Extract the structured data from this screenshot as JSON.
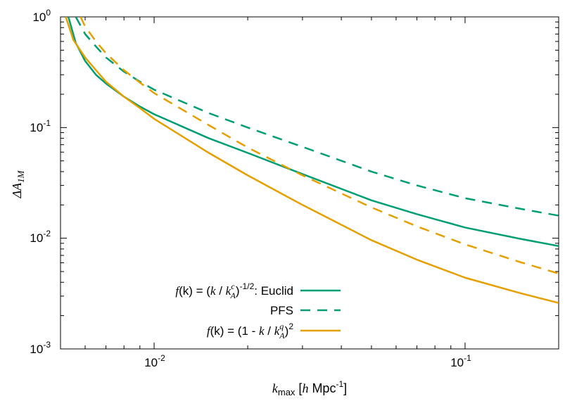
{
  "chart_data": {
    "type": "line",
    "xscale": "log",
    "yscale": "log",
    "xlim": [
      0.005,
      0.2
    ],
    "ylim": [
      0.001,
      1
    ],
    "grid": false,
    "legend_position": "bottom-left",
    "xlabel": {
      "main": "k",
      "sub": "max",
      "unit_open": " [",
      "unit_h": "h",
      "unit_mid": " Mpc",
      "unit_exp": "-1",
      "unit_close": "]"
    },
    "ylabel": {
      "delta": "Δ",
      "main": "A",
      "sub": "1M"
    },
    "xticks": [
      {
        "value": 0.01,
        "base": "10",
        "exp": "-2"
      },
      {
        "value": 0.1,
        "base": "10",
        "exp": "-1"
      }
    ],
    "yticks": [
      {
        "value": 1,
        "base": "10",
        "exp": "0"
      },
      {
        "value": 0.1,
        "base": "10",
        "exp": "-1"
      },
      {
        "value": 0.01,
        "base": "10",
        "exp": "-2"
      },
      {
        "value": 0.001,
        "base": "10",
        "exp": "-3"
      }
    ],
    "legend": [
      {
        "text_f": "f",
        "text_a": "(k) = (",
        "text_k": "k",
        "text_b": " / ",
        "text_kk": "k",
        "text_sup": "c",
        "text_sub": "A",
        "text_c": ")",
        "text_exp": "-1/2",
        "text_d": ": Euclid"
      },
      {
        "plain": "PFS"
      },
      {
        "text_f": "f",
        "text_a": "(k) = (1 - ",
        "text_k": "k",
        "text_b": " / ",
        "text_kk": "k",
        "text_sup": "q",
        "text_sub": "A",
        "text_c": ")",
        "text_exp": "2",
        "text_d": ""
      }
    ],
    "series": [
      {
        "key": "euclid_c",
        "color": "#009e73",
        "dash": "solid",
        "x": [
          0.0053,
          0.0056,
          0.006,
          0.0065,
          0.007,
          0.008,
          0.009,
          0.01,
          0.015,
          0.02,
          0.03,
          0.05,
          0.07,
          0.1,
          0.15,
          0.2
        ],
        "y": [
          1.0,
          0.58,
          0.4,
          0.3,
          0.25,
          0.19,
          0.155,
          0.132,
          0.08,
          0.059,
          0.038,
          0.022,
          0.0165,
          0.0125,
          0.0099,
          0.0085
        ]
      },
      {
        "key": "pfs_c",
        "color": "#009e73",
        "dash": "dashed",
        "x": [
          0.0056,
          0.006,
          0.0065,
          0.007,
          0.008,
          0.009,
          0.01,
          0.015,
          0.02,
          0.03,
          0.05,
          0.07,
          0.1,
          0.15,
          0.2
        ],
        "y": [
          1.0,
          0.7,
          0.54,
          0.43,
          0.32,
          0.26,
          0.22,
          0.135,
          0.1,
          0.067,
          0.04,
          0.03,
          0.023,
          0.0185,
          0.016
        ]
      },
      {
        "key": "euclid_q",
        "color": "#e69f00",
        "dash": "solid",
        "x": [
          0.0052,
          0.0055,
          0.006,
          0.0065,
          0.007,
          0.008,
          0.009,
          0.01,
          0.015,
          0.02,
          0.03,
          0.05,
          0.07,
          0.1,
          0.15,
          0.2
        ],
        "y": [
          1.0,
          0.62,
          0.43,
          0.33,
          0.26,
          0.19,
          0.15,
          0.12,
          0.059,
          0.037,
          0.02,
          0.0096,
          0.0064,
          0.0044,
          0.0032,
          0.0026
        ]
      },
      {
        "key": "pfs_q",
        "color": "#e69f00",
        "dash": "dashed",
        "x": [
          0.0058,
          0.006,
          0.0065,
          0.007,
          0.008,
          0.009,
          0.01,
          0.015,
          0.02,
          0.03,
          0.05,
          0.07,
          0.1,
          0.15,
          0.2
        ],
        "y": [
          1.0,
          0.82,
          0.6,
          0.47,
          0.33,
          0.255,
          0.205,
          0.105,
          0.066,
          0.037,
          0.019,
          0.0128,
          0.0088,
          0.0061,
          0.0048
        ]
      }
    ]
  }
}
